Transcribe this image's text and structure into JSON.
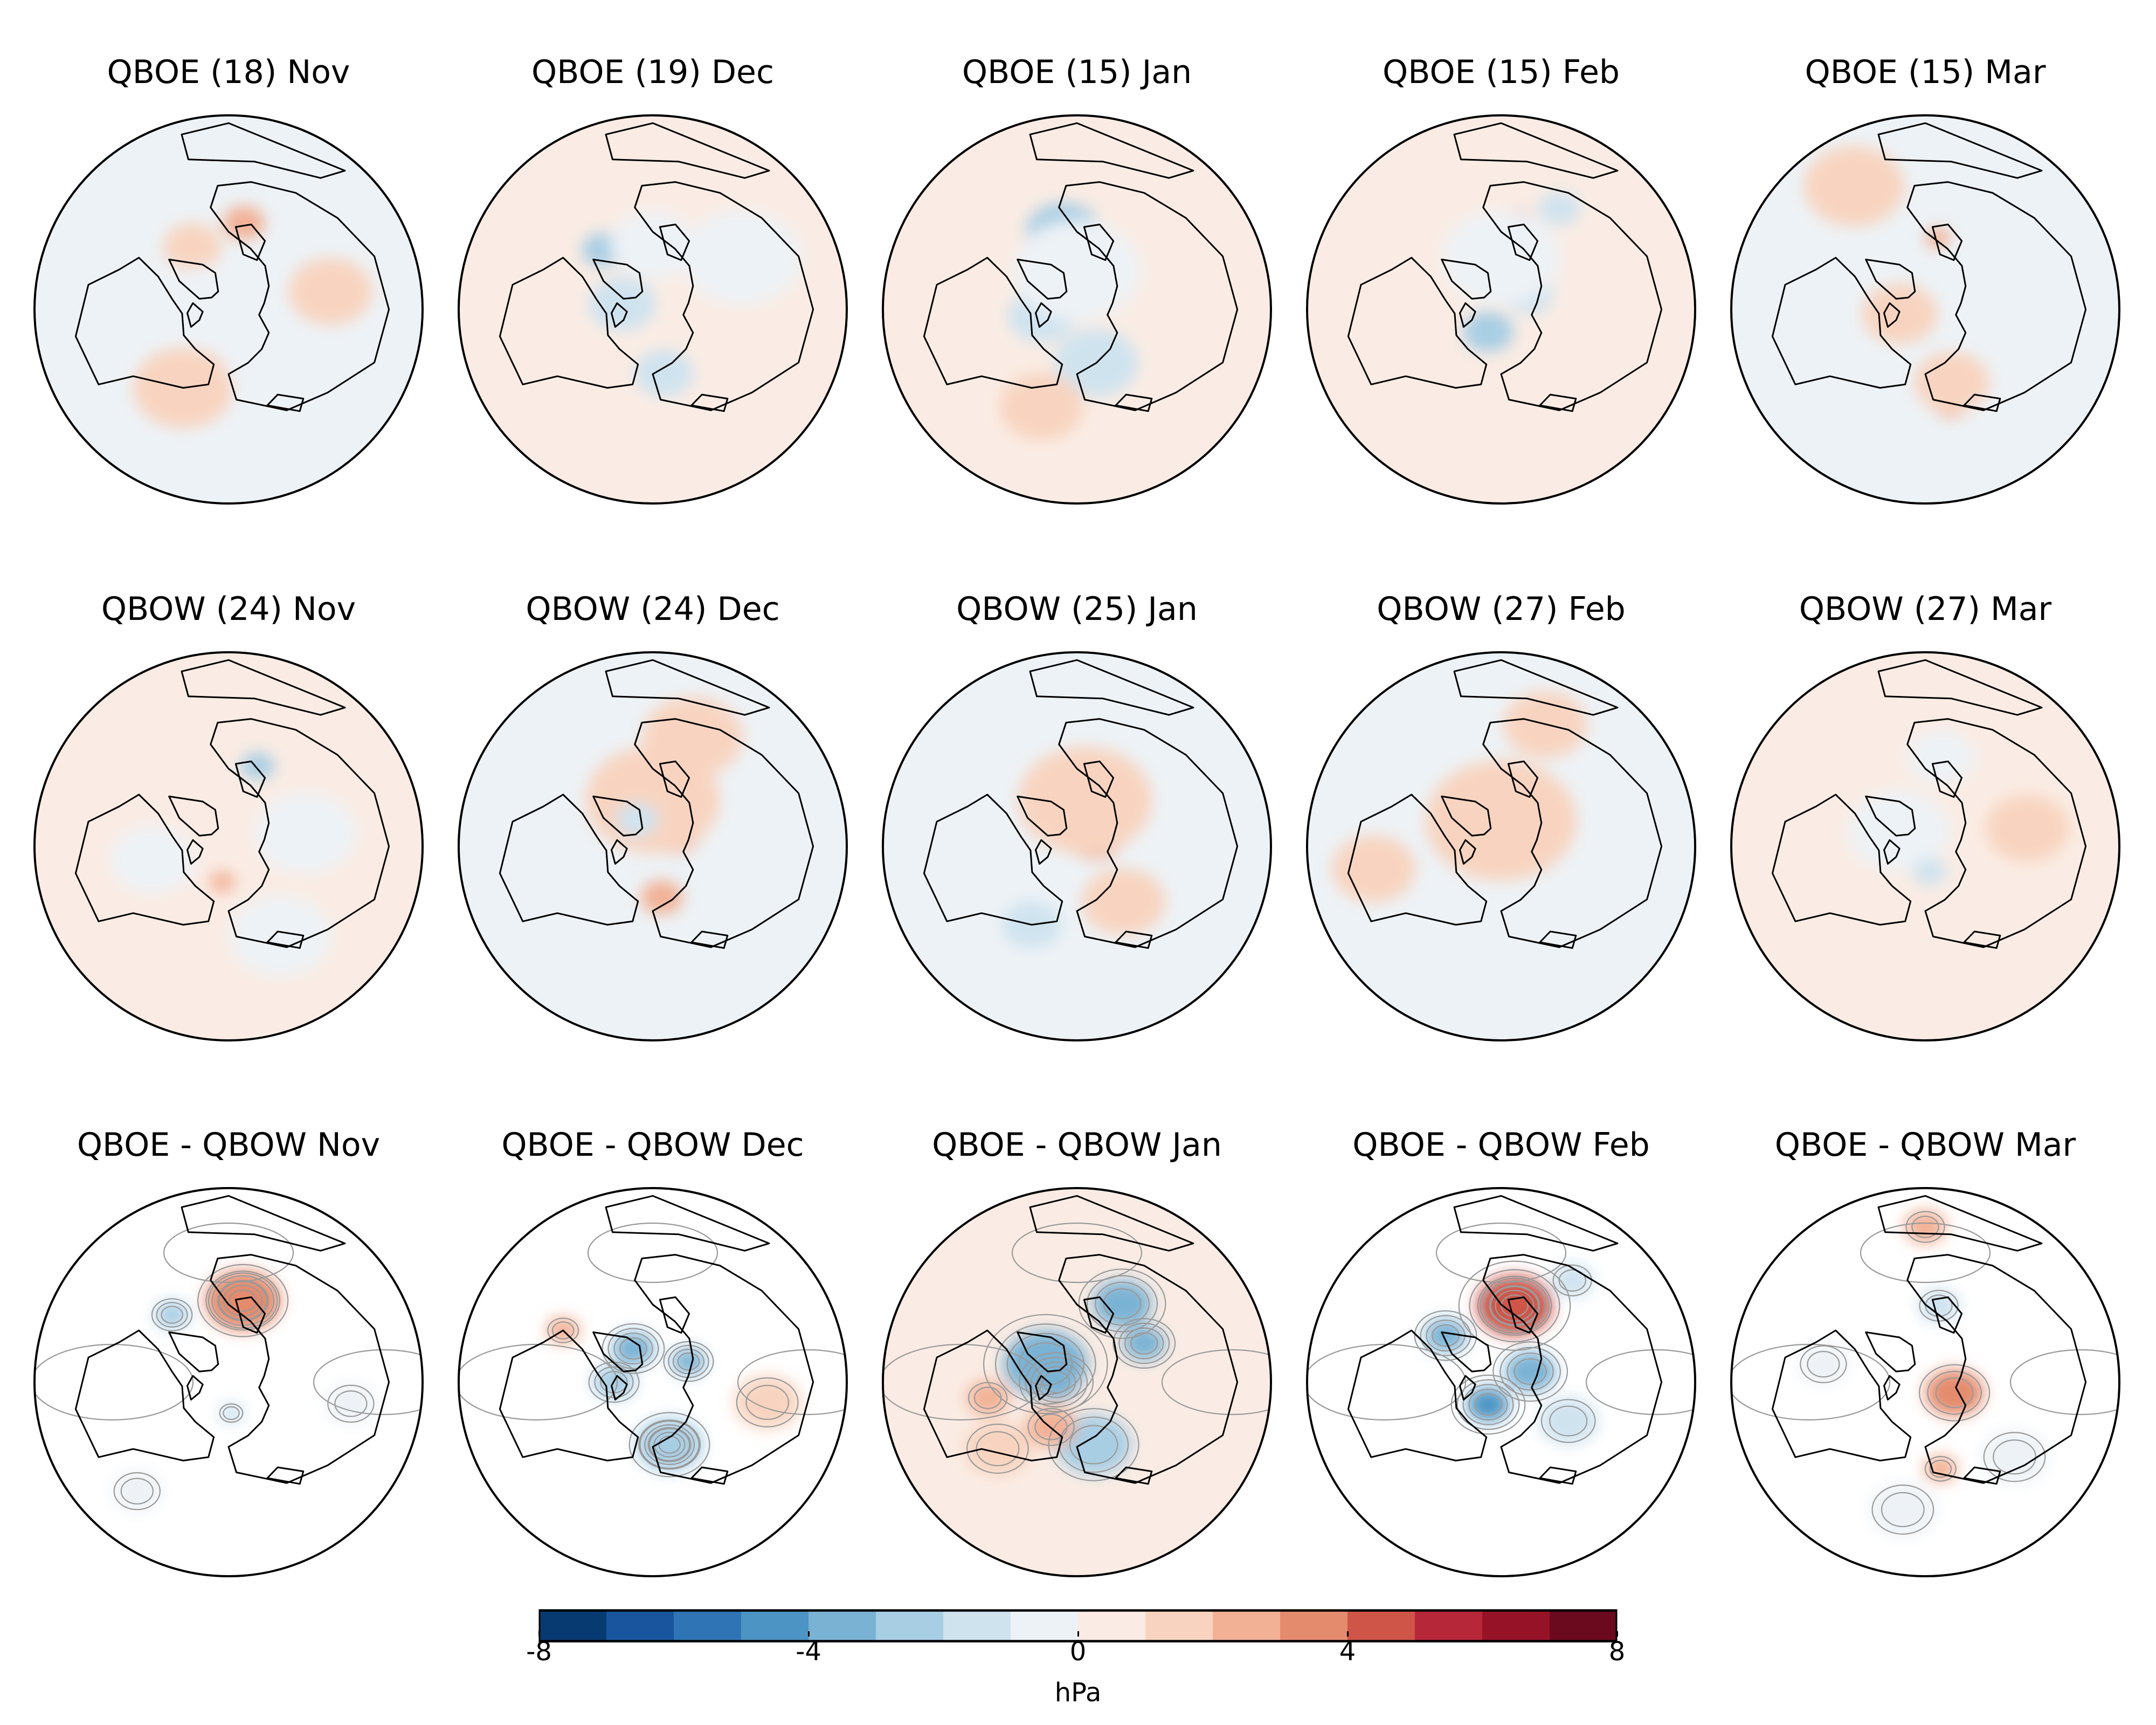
{
  "panels": [
    {
      "title": "QBOE (18) Nov",
      "row": 0,
      "col": 0,
      "contours": false,
      "background": "#edf2f6",
      "anomalies": [
        {
          "value": 1,
          "lon": -30,
          "colat": 28,
          "size": 7
        },
        {
          "value": 2,
          "lon": 10,
          "colat": 34,
          "size": 5
        },
        {
          "value": -1,
          "lon": -60,
          "colat": 10,
          "size": 9
        },
        {
          "value": 1,
          "lon": 80,
          "colat": 40,
          "size": 10
        },
        {
          "value": 1,
          "lon": -150,
          "colat": 35,
          "size": 12
        },
        {
          "value": -1,
          "lon": 140,
          "colat": 30,
          "size": 12
        }
      ]
    },
    {
      "title": "QBOE (19) Dec",
      "row": 0,
      "col": 1,
      "contours": false,
      "background": "#faece4",
      "anomalies": [
        {
          "value": -2,
          "lon": 170,
          "colat": 25,
          "size": 7
        },
        {
          "value": -2,
          "lon": -80,
          "colat": 12,
          "size": 8
        },
        {
          "value": -3,
          "lon": -40,
          "colat": 30,
          "size": 5
        },
        {
          "value": -1,
          "lon": 0,
          "colat": 25,
          "size": 10
        },
        {
          "value": -1,
          "lon": 60,
          "colat": 40,
          "size": 14
        }
      ]
    },
    {
      "title": "QBOE (15) Jan",
      "row": 0,
      "col": 2,
      "contours": false,
      "background": "#faece4",
      "anomalies": [
        {
          "value": -2,
          "lon": 160,
          "colat": 22,
          "size": 10
        },
        {
          "value": -2,
          "lon": -100,
          "colat": 14,
          "size": 8
        },
        {
          "value": -3,
          "lon": -10,
          "colat": 30,
          "size": 9
        },
        {
          "value": -3,
          "lon": 50,
          "colat": 14,
          "size": 7
        },
        {
          "value": -1,
          "lon": 0,
          "colat": 15,
          "size": 15
        },
        {
          "value": 1,
          "lon": -160,
          "colat": 40,
          "size": 10
        }
      ]
    },
    {
      "title": "QBOE (15) Feb",
      "row": 0,
      "col": 3,
      "contours": false,
      "background": "#faece4",
      "anomalies": [
        {
          "value": 5,
          "lon": 10,
          "colat": 32,
          "size": 5
        },
        {
          "value": -3,
          "lon": -150,
          "colat": 10,
          "size": 6
        },
        {
          "value": -2,
          "lon": 60,
          "colat": 12,
          "size": 6
        },
        {
          "value": -2,
          "lon": 30,
          "colat": 45,
          "size": 5
        },
        {
          "value": -1,
          "lon": 0,
          "colat": 20,
          "size": 14
        }
      ]
    },
    {
      "title": "QBOE (15) Mar",
      "row": 0,
      "col": 4,
      "contours": false,
      "background": "#edf2f6",
      "anomalies": [
        {
          "value": 2,
          "lon": 165,
          "colat": 38,
          "size": 4
        },
        {
          "value": 1,
          "lon": 160,
          "colat": 30,
          "size": 9
        },
        {
          "value": 1,
          "lon": -100,
          "colat": 10,
          "size": 9
        },
        {
          "value": 2,
          "lon": 10,
          "colat": 28,
          "size": 3
        },
        {
          "value": -1,
          "lon": 60,
          "colat": 30,
          "size": 10
        },
        {
          "value": 1,
          "lon": -30,
          "colat": 55,
          "size": 12
        }
      ]
    },
    {
      "title": "QBOW (24) Nov",
      "row": 1,
      "col": 0,
      "contours": false,
      "background": "#faece4",
      "anomalies": [
        {
          "value": -3,
          "lon": 20,
          "colat": 33,
          "size": 4
        },
        {
          "value": -1,
          "lon": 80,
          "colat": 30,
          "size": 12
        },
        {
          "value": 2,
          "lon": -170,
          "colat": 14,
          "size": 3
        },
        {
          "value": -1,
          "lon": -100,
          "colat": 30,
          "size": 10
        },
        {
          "value": -1,
          "lon": 150,
          "colat": 40,
          "size": 12
        }
      ]
    },
    {
      "title": "QBOW (24) Dec",
      "row": 1,
      "col": 1,
      "contours": false,
      "background": "#edf2f6",
      "anomalies": [
        {
          "value": 2,
          "lon": 60,
          "colat": 10,
          "size": 6
        },
        {
          "value": 2,
          "lon": 170,
          "colat": 20,
          "size": 5
        },
        {
          "value": 1,
          "lon": 0,
          "colat": 18,
          "size": 16
        },
        {
          "value": 1,
          "lon": 20,
          "colat": 45,
          "size": 12
        },
        {
          "value": -2,
          "lon": -30,
          "colat": 12,
          "size": 5
        }
      ]
    },
    {
      "title": "QBOW (25) Jan",
      "row": 1,
      "col": 2,
      "contours": false,
      "background": "#edf2f6",
      "anomalies": [
        {
          "value": 2,
          "lon": 60,
          "colat": 8,
          "size": 7
        },
        {
          "value": 2,
          "lon": 0,
          "colat": 28,
          "size": 6
        },
        {
          "value": 1,
          "lon": 10,
          "colat": 18,
          "size": 16
        },
        {
          "value": 1,
          "lon": 140,
          "colat": 28,
          "size": 10
        },
        {
          "value": -2,
          "lon": -150,
          "colat": 35,
          "size": 7
        }
      ]
    },
    {
      "title": "QBOW (27) Feb",
      "row": 1,
      "col": 3,
      "contours": false,
      "background": "#edf2f6",
      "anomalies": [
        {
          "value": 2,
          "lon": 70,
          "colat": 10,
          "size": 7
        },
        {
          "value": -2,
          "lon": -10,
          "colat": 18,
          "size": 6
        },
        {
          "value": 1,
          "lon": 0,
          "colat": 10,
          "size": 18
        },
        {
          "value": 1,
          "lon": 20,
          "colat": 50,
          "size": 10
        },
        {
          "value": 1,
          "lon": -100,
          "colat": 50,
          "size": 10
        }
      ]
    },
    {
      "title": "QBOW (27) Mar",
      "row": 1,
      "col": 4,
      "contours": false,
      "background": "#faece4",
      "anomalies": [
        {
          "value": -1,
          "lon": -60,
          "colat": 12,
          "size": 12
        },
        {
          "value": -1,
          "lon": 10,
          "colat": 35,
          "size": 8
        },
        {
          "value": -2,
          "lon": 170,
          "colat": 10,
          "size": 4
        },
        {
          "value": 1,
          "lon": 80,
          "colat": 40,
          "size": 10
        }
      ]
    },
    {
      "title": "QBOE - QBOW Nov",
      "row": 2,
      "col": 0,
      "contours": true,
      "background": "#ffffff",
      "anomalies": [
        {
          "value": 5,
          "lon": 10,
          "colat": 32,
          "size": 5
        },
        {
          "value": 3,
          "lon": 10,
          "colat": 32,
          "size": 9
        },
        {
          "value": -3,
          "lon": -40,
          "colat": 34,
          "size": 4
        },
        {
          "value": -2,
          "lon": 175,
          "colat": 12,
          "size": 3
        },
        {
          "value": -1,
          "lon": 100,
          "colat": 48,
          "size": 6
        },
        {
          "value": -1,
          "lon": -140,
          "colat": 55,
          "size": 6
        }
      ]
    },
    {
      "title": "QBOE - QBOW Dec",
      "row": 2,
      "col": 1,
      "contours": true,
      "background": "#ffffff",
      "anomalies": [
        {
          "value": -5,
          "lon": 165,
          "colat": 25,
          "size": 4
        },
        {
          "value": -3,
          "lon": 165,
          "colat": 25,
          "size": 8
        },
        {
          "value": -4,
          "lon": -30,
          "colat": 15,
          "size": 5
        },
        {
          "value": -4,
          "lon": 60,
          "colat": 16,
          "size": 4
        },
        {
          "value": -3,
          "lon": -90,
          "colat": 15,
          "size": 5
        },
        {
          "value": 2,
          "lon": -60,
          "colat": 40,
          "size": 4
        },
        {
          "value": 1,
          "lon": 100,
          "colat": 45,
          "size": 8
        }
      ]
    },
    {
      "title": "QBOE - QBOW Jan",
      "row": 2,
      "col": 2,
      "contours": true,
      "background": "#faece4",
      "anomalies": [
        {
          "value": -6,
          "lon": -90,
          "colat": 8,
          "size": 5
        },
        {
          "value": -4,
          "lon": -60,
          "colat": 14,
          "size": 10
        },
        {
          "value": -4,
          "lon": 30,
          "colat": 35,
          "size": 7
        },
        {
          "value": -4,
          "lon": 60,
          "colat": 30,
          "size": 5
        },
        {
          "value": -3,
          "lon": 165,
          "colat": 25,
          "size": 9
        },
        {
          "value": 2,
          "lon": -150,
          "colat": 20,
          "size": 6
        },
        {
          "value": 2,
          "lon": -100,
          "colat": 35,
          "size": 5
        },
        {
          "value": 1,
          "lon": -130,
          "colat": 40,
          "size": 8
        }
      ]
    },
    {
      "title": "QBOE - QBOW Feb",
      "row": 2,
      "col": 3,
      "contours": true,
      "background": "#ffffff",
      "anomalies": [
        {
          "value": 6,
          "lon": 10,
          "colat": 30,
          "size": 5
        },
        {
          "value": 4,
          "lon": 10,
          "colat": 30,
          "size": 9
        },
        {
          "value": -5,
          "lon": -150,
          "colat": 10,
          "size": 5
        },
        {
          "value": -4,
          "lon": 70,
          "colat": 12,
          "size": 6
        },
        {
          "value": -4,
          "lon": -50,
          "colat": 28,
          "size": 5
        },
        {
          "value": -2,
          "lon": 35,
          "colat": 48,
          "size": 5
        },
        {
          "value": -2,
          "lon": 120,
          "colat": 30,
          "size": 7
        }
      ]
    },
    {
      "title": "QBOE - QBOW Mar",
      "row": 2,
      "col": 4,
      "contours": true,
      "background": "#ffffff",
      "anomalies": [
        {
          "value": 3,
          "lon": 110,
          "colat": 12,
          "size": 7
        },
        {
          "value": 2,
          "lon": 170,
          "colat": 34,
          "size": 4
        },
        {
          "value": 2,
          "lon": 0,
          "colat": 60,
          "size": 5
        },
        {
          "value": -2,
          "lon": 10,
          "colat": 30,
          "size": 5
        },
        {
          "value": -1,
          "lon": 130,
          "colat": 45,
          "size": 8
        },
        {
          "value": -1,
          "lon": -170,
          "colat": 50,
          "size": 8
        },
        {
          "value": -1,
          "lon": -80,
          "colat": 40,
          "size": 6
        }
      ]
    }
  ],
  "colorbar": {
    "label": "hPa",
    "vmin": -8,
    "vmax": 8,
    "levels": [
      -8,
      -7,
      -6,
      -5,
      -4,
      -3,
      -2,
      -1,
      0,
      1,
      2,
      3,
      4,
      5,
      6,
      7,
      8
    ],
    "colors": [
      "#073a71",
      "#19559e",
      "#2f75b5",
      "#4b94c4",
      "#7ab2d4",
      "#a8cee4",
      "#cfe3ef",
      "#edf2f6",
      "#faece4",
      "#f8d4c0",
      "#f2b195",
      "#e48b6d",
      "#cf5548",
      "#b7273a",
      "#961327",
      "#6b0a1f"
    ],
    "ticks": [
      {
        "value": -8,
        "label": "-8"
      },
      {
        "value": -4,
        "label": "-4"
      },
      {
        "value": 0,
        "label": "0"
      },
      {
        "value": 4,
        "label": "4"
      },
      {
        "value": 8,
        "label": "8"
      }
    ]
  },
  "colors": {
    "coastline": "#000000",
    "contour_line": "#9a9a9a",
    "map_border": "#000000"
  }
}
